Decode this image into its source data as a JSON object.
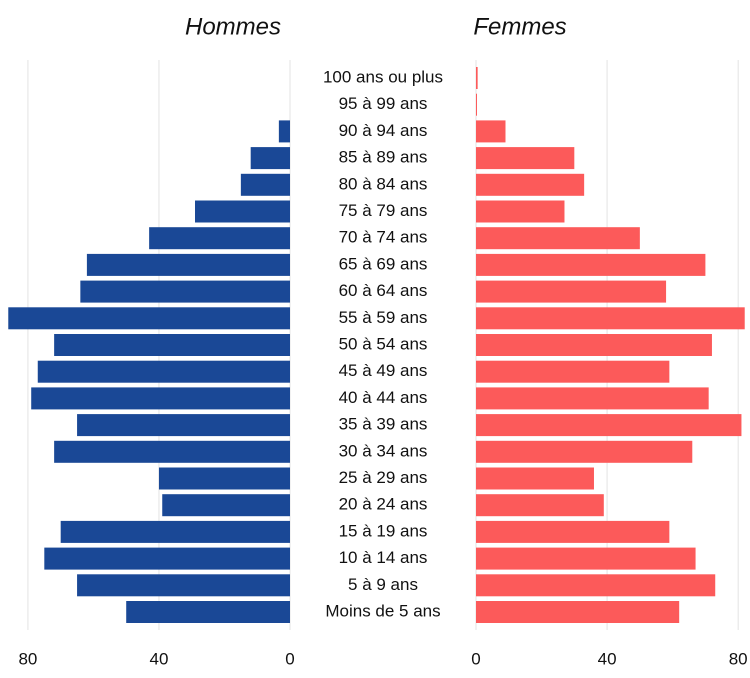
{
  "chart_data": [
    {
      "type": "bar",
      "title": "Hommes",
      "color": "#1a4896",
      "direction": "left",
      "categories": [
        "100 ans ou plus",
        "95 à 99 ans",
        "90 à 94 ans",
        "85 à 89 ans",
        "80 à 84 ans",
        "75 à 79 ans",
        "70 à 74 ans",
        "65 à 69 ans",
        "60 à 64 ans",
        "55 à 59 ans",
        "50 à 54 ans",
        "45 à 49 ans",
        "40 à 44 ans",
        "35 à 39 ans",
        "30 à 34 ans",
        "25 à 29 ans",
        "20 à 24 ans",
        "15 à 19 ans",
        "10 à 14 ans",
        "5 à 9 ans",
        "Moins de 5 ans"
      ],
      "values": [
        0,
        0,
        3.4,
        12,
        15,
        29,
        43,
        62,
        64,
        86,
        72,
        77,
        79,
        65,
        72,
        40,
        39,
        70,
        75,
        65,
        50
      ],
      "xlim": [
        0,
        87
      ],
      "xticks": [
        0,
        40,
        80
      ],
      "grid": true
    },
    {
      "type": "bar",
      "title": "Femmes",
      "color": "#fc5a5a",
      "direction": "right",
      "values": [
        0.5,
        0.3,
        9,
        30,
        33,
        27,
        50,
        70,
        58,
        82,
        72,
        59,
        71,
        81,
        66,
        36,
        39,
        59,
        67,
        73,
        62
      ],
      "xlim": [
        0,
        83
      ],
      "xticks": [
        0,
        40,
        80
      ],
      "grid": true
    }
  ]
}
